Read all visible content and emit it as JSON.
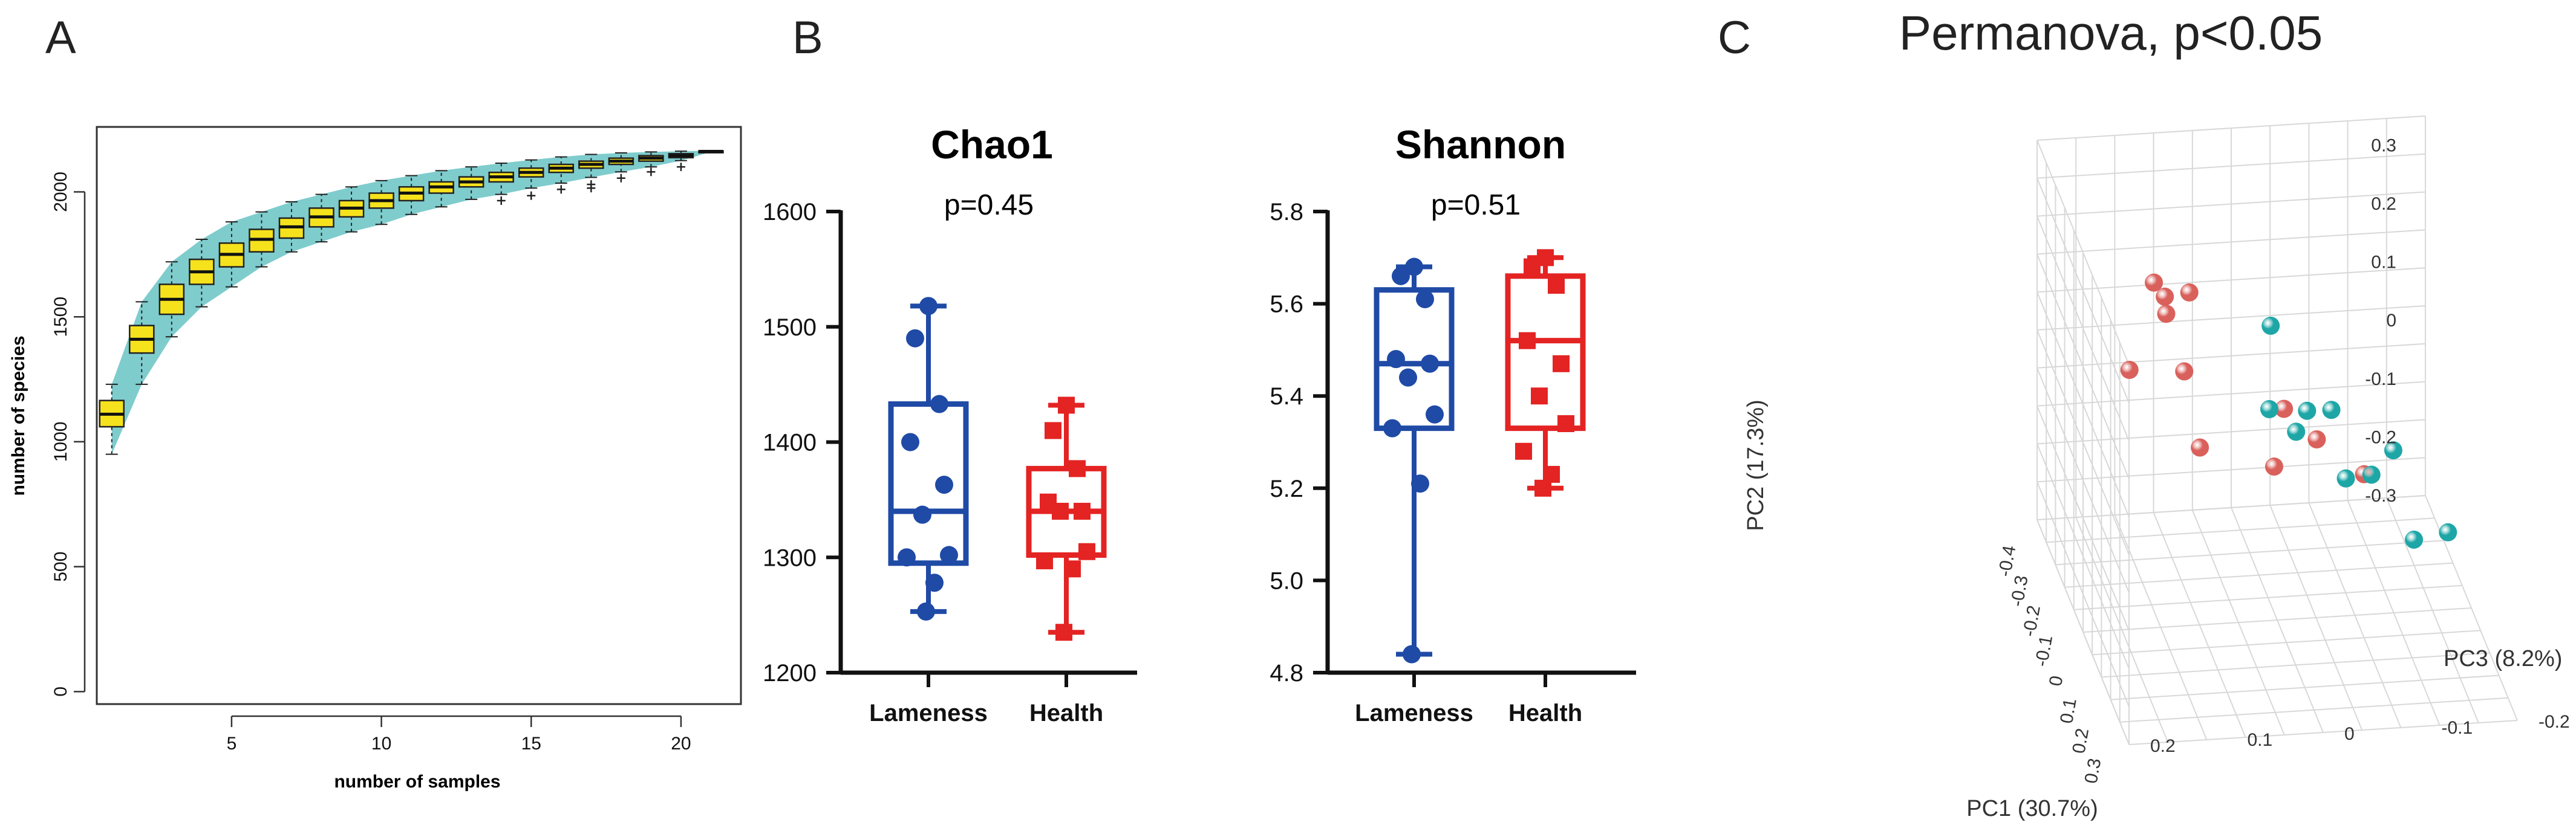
{
  "panels": {
    "a_label": "A",
    "b_label": "B",
    "c_label": "C"
  },
  "colors": {
    "band": "#7fcccd",
    "box_fill": "#f6e21c",
    "lameness": "#1f4aa6",
    "health": "#e42323",
    "pca_red": "#d9605b",
    "pca_teal": "#1ea6a6",
    "grid": "#d8d8d8"
  },
  "chart_data": [
    {
      "type": "box",
      "panel": "A",
      "title": "",
      "xlabel": "number of samples",
      "ylabel": "number of species",
      "xlim": [
        0.5,
        22
      ],
      "ylim": [
        -50,
        2260
      ],
      "xticks": [
        5,
        10,
        15,
        20
      ],
      "yticks": [
        0,
        500,
        1000,
        1500,
        2000
      ],
      "boxes": [
        {
          "x": 1,
          "q1": 1060,
          "median": 1110,
          "q3": 1165,
          "whisker_low": 950,
          "whisker_high": 1230
        },
        {
          "x": 2,
          "q1": 1355,
          "median": 1410,
          "q3": 1465,
          "whisker_low": 1230,
          "whisker_high": 1560
        },
        {
          "x": 3,
          "q1": 1510,
          "median": 1570,
          "q3": 1630,
          "whisker_low": 1420,
          "whisker_high": 1720
        },
        {
          "x": 4,
          "q1": 1630,
          "median": 1680,
          "q3": 1730,
          "whisker_low": 1540,
          "whisker_high": 1810
        },
        {
          "x": 5,
          "q1": 1700,
          "median": 1750,
          "q3": 1795,
          "whisker_low": 1620,
          "whisker_high": 1880
        },
        {
          "x": 6,
          "q1": 1760,
          "median": 1810,
          "q3": 1850,
          "whisker_low": 1700,
          "whisker_high": 1920
        },
        {
          "x": 7,
          "q1": 1815,
          "median": 1860,
          "q3": 1895,
          "whisker_low": 1760,
          "whisker_high": 1960
        },
        {
          "x": 8,
          "q1": 1860,
          "median": 1900,
          "q3": 1935,
          "whisker_low": 1800,
          "whisker_high": 1990
        },
        {
          "x": 9,
          "q1": 1900,
          "median": 1935,
          "q3": 1965,
          "whisker_low": 1840,
          "whisker_high": 2020
        },
        {
          "x": 10,
          "q1": 1935,
          "median": 1965,
          "q3": 1995,
          "whisker_low": 1870,
          "whisker_high": 2045
        },
        {
          "x": 11,
          "q1": 1965,
          "median": 1995,
          "q3": 2020,
          "whisker_low": 1910,
          "whisker_high": 2065
        },
        {
          "x": 12,
          "q1": 1995,
          "median": 2020,
          "q3": 2040,
          "whisker_low": 1940,
          "whisker_high": 2085
        },
        {
          "x": 13,
          "q1": 2020,
          "median": 2040,
          "q3": 2060,
          "whisker_low": 1970,
          "whisker_high": 2100
        },
        {
          "x": 14,
          "q1": 2040,
          "median": 2060,
          "q3": 2078,
          "whisker_low": 1990,
          "whisker_high": 2115
        },
        {
          "x": 15,
          "q1": 2060,
          "median": 2078,
          "q3": 2095,
          "whisker_low": 2015,
          "whisker_high": 2128
        },
        {
          "x": 16,
          "q1": 2078,
          "median": 2095,
          "q3": 2110,
          "whisker_low": 2035,
          "whisker_high": 2140
        },
        {
          "x": 17,
          "q1": 2095,
          "median": 2110,
          "q3": 2123,
          "whisker_low": 2058,
          "whisker_high": 2150
        },
        {
          "x": 18,
          "q1": 2110,
          "median": 2123,
          "q3": 2135,
          "whisker_low": 2080,
          "whisker_high": 2156
        },
        {
          "x": 19,
          "q1": 2123,
          "median": 2135,
          "q3": 2145,
          "whisker_low": 2100,
          "whisker_high": 2160
        },
        {
          "x": 20,
          "q1": 2137,
          "median": 2145,
          "q3": 2153,
          "whisker_low": 2125,
          "whisker_high": 2163
        },
        {
          "x": 21,
          "q1": 2160,
          "median": 2162,
          "q3": 2164,
          "whisker_low": 2160,
          "whisker_high": 2165
        }
      ],
      "outliers": [
        {
          "x": 14,
          "y": 1965
        },
        {
          "x": 15,
          "y": 1985
        },
        {
          "x": 16,
          "y": 2010
        },
        {
          "x": 17,
          "y": 2030
        },
        {
          "x": 17,
          "y": 2015
        },
        {
          "x": 18,
          "y": 2055
        },
        {
          "x": 19,
          "y": 2080
        },
        {
          "x": 20,
          "y": 2100
        }
      ]
    },
    {
      "type": "box",
      "panel": "B1",
      "title": "Chao1",
      "annotation": "p=0.45",
      "ylim": [
        1200,
        1600
      ],
      "yticks": [
        1200,
        1300,
        1400,
        1500,
        1600
      ],
      "categories": [
        "Lameness",
        "Health"
      ],
      "boxes": [
        {
          "q1": 1295,
          "median": 1340,
          "q3": 1433,
          "whisker_low": 1253,
          "whisker_high": 1518
        },
        {
          "q1": 1302,
          "median": 1340,
          "q3": 1377,
          "whisker_low": 1235,
          "whisker_high": 1432
        }
      ],
      "series": [
        {
          "name": "Lameness",
          "values": [
            1518,
            1490,
            1433,
            1400,
            1363,
            1337,
            1302,
            1300,
            1278,
            1253
          ]
        },
        {
          "name": "Health",
          "values": [
            1432,
            1410,
            1377,
            1348,
            1340,
            1340,
            1305,
            1297,
            1290,
            1235
          ]
        }
      ]
    },
    {
      "type": "box",
      "panel": "B2",
      "title": "Shannon",
      "annotation": "p=0.51",
      "ylim": [
        4.8,
        5.8
      ],
      "yticks": [
        "4.8",
        "5.0",
        "5.2",
        "5.4",
        "5.6",
        "5.8"
      ],
      "categories": [
        "Lameness",
        "Health"
      ],
      "boxes": [
        {
          "q1": 5.33,
          "median": 5.47,
          "q3": 5.63,
          "whisker_low": 4.84,
          "whisker_high": 5.68
        },
        {
          "q1": 5.33,
          "median": 5.52,
          "q3": 5.66,
          "whisker_low": 5.2,
          "whisker_high": 5.7
        }
      ],
      "series": [
        {
          "name": "Lameness",
          "values": [
            5.68,
            5.66,
            5.61,
            5.48,
            5.47,
            5.44,
            5.36,
            5.33,
            5.21,
            4.84
          ]
        },
        {
          "name": "Health",
          "values": [
            5.7,
            5.68,
            5.64,
            5.52,
            5.47,
            5.4,
            5.34,
            5.28,
            5.23,
            5.2
          ]
        }
      ]
    },
    {
      "type": "scatter3d",
      "panel": "C",
      "title": "Permanova, p<0.05",
      "xlabel": "PC1 (30.7%)",
      "ylabel": "PC2 (17.3%)",
      "zlabel": "PC3 (8.2%)",
      "pc1_ticks": [
        "-0.4",
        "-0.3",
        "-0.2",
        "-0.1",
        "0",
        "0.1",
        "0.2",
        "0.3"
      ],
      "pc2_ticks": [
        "-0.3",
        "-0.2",
        "-0.1",
        "0",
        "0.1",
        "0.2",
        "0.3"
      ],
      "pc3_ticks": [
        "-0.2",
        "-0.1",
        "0",
        "0.1",
        "0.2"
      ],
      "series": [
        {
          "name": "group_red",
          "color": "#d9605b",
          "points": [
            {
              "pc1": 0.05,
              "pc2": 0.31,
              "pc3": 0.1
            },
            {
              "pc1": 0.02,
              "pc2": 0.26,
              "pc3": 0.12
            },
            {
              "pc1": -0.16,
              "pc2": 0.22,
              "pc3": 0.11
            },
            {
              "pc1": -0.15,
              "pc2": 0.2,
              "pc3": 0.1
            },
            {
              "pc1": 0.03,
              "pc2": 0.09,
              "pc3": 0.0
            },
            {
              "pc1": -0.15,
              "pc2": 0.07,
              "pc3": 0.08
            },
            {
              "pc1": 0.06,
              "pc2": 0.05,
              "pc3": -0.03
            },
            {
              "pc1": -0.28,
              "pc2": 0.01,
              "pc3": 0.12
            },
            {
              "pc1": 0.05,
              "pc2": -0.02,
              "pc3": -0.08
            },
            {
              "pc1": -0.05,
              "pc2": -0.05,
              "pc3": 0.0
            },
            {
              "pc1": -0.26,
              "pc2": -0.12,
              "pc3": 0.05
            }
          ]
        },
        {
          "name": "group_teal",
          "color": "#1ea6a6",
          "points": [
            {
              "pc1": 0.08,
              "pc2": 0.26,
              "pc3": 0.02
            },
            {
              "pc1": 0.1,
              "pc2": 0.12,
              "pc3": -0.04
            },
            {
              "pc1": 0.06,
              "pc2": 0.1,
              "pc3": -0.02
            },
            {
              "pc1": -0.01,
              "pc2": 0.07,
              "pc3": 0.01
            },
            {
              "pc1": 0.05,
              "pc2": 0.06,
              "pc3": -0.01
            },
            {
              "pc1": 0.13,
              "pc2": 0.06,
              "pc3": -0.1
            },
            {
              "pc1": 0.11,
              "pc2": 0.01,
              "pc3": -0.08
            },
            {
              "pc1": 0.06,
              "pc2": -0.02,
              "pc3": -0.06
            },
            {
              "pc1": 0.18,
              "pc2": -0.06,
              "pc3": -0.15
            },
            {
              "pc1": 0.14,
              "pc2": -0.09,
              "pc3": -0.12
            }
          ]
        }
      ]
    }
  ]
}
